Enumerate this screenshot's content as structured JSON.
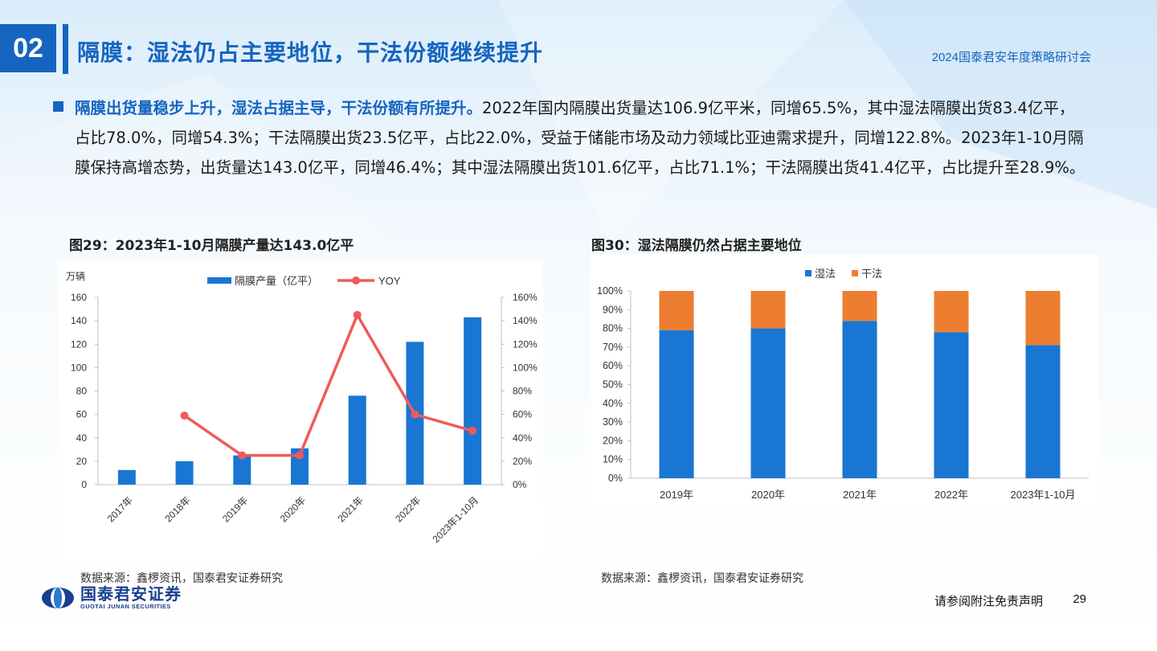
{
  "header": {
    "section_number": "02",
    "title": "隔膜：湿法仍占主要地位，干法份额继续提升",
    "event": "2024国泰君安年度策略研讨会"
  },
  "bullet": {
    "lead": "隔膜出货量稳步上升，湿法占据主导，干法份额有所提升。",
    "body": "2022年国内隔膜出货量达106.9亿平米，同增65.5%，其中湿法隔膜出货83.4亿平，占比78.0%，同增54.3%；干法隔膜出货23.5亿平，占比22.0%，受益于储能市场及动力领域比亚迪需求提升，同增122.8%。2023年1-10月隔膜保持高增态势，出货量达143.0亿平，同增46.4%；其中湿法隔膜出货101.6亿平，占比71.1%；干法隔膜出货41.4亿平，占比提升至28.9%。"
  },
  "chart_left": {
    "heading": "图29：2023年1-10月隔膜产量达143.0亿平",
    "source": "数据来源：鑫椤资讯，国泰君安证券研究"
  },
  "chart_right": {
    "heading": "图30：湿法隔膜仍然占据主要地位",
    "source": "数据来源：鑫椤资讯，国泰君安证券研究"
  },
  "chart_data": [
    {
      "type": "bar+line",
      "unit_label": "万辆",
      "categories": [
        "2017年",
        "2018年",
        "2019年",
        "2020年",
        "2021年",
        "2022年",
        "2023年1-10月"
      ],
      "series": [
        {
          "name": "隔膜产量（亿平）",
          "kind": "bar",
          "axis": "left",
          "color": "#1976d2",
          "values": [
            12.5,
            20,
            25,
            31,
            76,
            122,
            143
          ]
        },
        {
          "name": "YOY",
          "kind": "line",
          "axis": "right",
          "color": "#f05a5a",
          "values": [
            null,
            0.59,
            0.25,
            0.25,
            1.45,
            0.6,
            0.46
          ]
        }
      ],
      "ylim_left": [
        0,
        160
      ],
      "yticks_left": [
        "0",
        "20",
        "40",
        "60",
        "80",
        "100",
        "120",
        "140",
        "160"
      ],
      "ylim_right": [
        0,
        1.6
      ],
      "yticks_right": [
        "0%",
        "20%",
        "40%",
        "60%",
        "80%",
        "100%",
        "120%",
        "140%",
        "160%"
      ],
      "legend_position": "top"
    },
    {
      "type": "stacked-bar",
      "categories": [
        "2019年",
        "2020年",
        "2021年",
        "2022年",
        "2023年1-10月"
      ],
      "series": [
        {
          "name": "湿法",
          "color": "#1976d2",
          "values": [
            0.79,
            0.8,
            0.84,
            0.78,
            0.711
          ]
        },
        {
          "name": "干法",
          "color": "#ed7d31",
          "values": [
            0.21,
            0.2,
            0.16,
            0.22,
            0.289
          ]
        }
      ],
      "ylim": [
        0,
        1
      ],
      "yticks": [
        "0%",
        "10%",
        "20%",
        "30%",
        "40%",
        "50%",
        "60%",
        "70%",
        "80%",
        "90%",
        "100%"
      ],
      "legend_position": "top"
    }
  ],
  "footer": {
    "logo_cn": "国泰君安证券",
    "logo_en": "GUOTAI JUNAN SECURITIES",
    "disclaimer": "请参阅附注免责声明",
    "page_number": "29"
  }
}
